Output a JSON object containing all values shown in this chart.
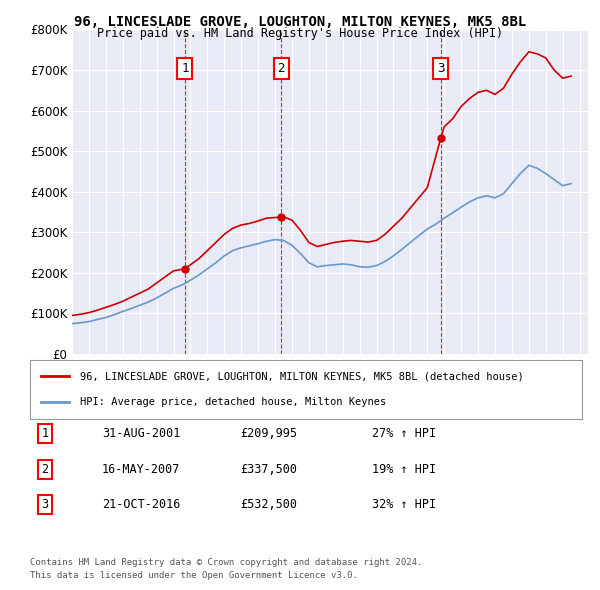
{
  "title": "96, LINCESLADE GROVE, LOUGHTON, MILTON KEYNES, MK5 8BL",
  "subtitle": "Price paid vs. HM Land Registry's House Price Index (HPI)",
  "ylabel": "",
  "background_color": "#ffffff",
  "plot_bg_color": "#e8eaf6",
  "grid_color": "#ffffff",
  "ylim": [
    0,
    800000
  ],
  "yticks": [
    0,
    100000,
    200000,
    300000,
    400000,
    500000,
    600000,
    700000,
    800000
  ],
  "ytick_labels": [
    "£0",
    "£100K",
    "£200K",
    "£300K",
    "£400K",
    "£500K",
    "£600K",
    "£700K",
    "£800K"
  ],
  "xlim_start": 1995.0,
  "xlim_end": 2025.5,
  "sale_dates": [
    2001.667,
    2007.375,
    2016.8
  ],
  "sale_prices": [
    209995,
    337500,
    532500
  ],
  "sale_labels": [
    "1",
    "2",
    "3"
  ],
  "sale_date_strings": [
    "31-AUG-2001",
    "16-MAY-2007",
    "21-OCT-2016"
  ],
  "sale_price_strings": [
    "£209,995",
    "£337,500",
    "£532,500"
  ],
  "sale_hpi_strings": [
    "27% ↑ HPI",
    "19% ↑ HPI",
    "32% ↑ HPI"
  ],
  "red_line_color": "#cc0000",
  "blue_line_color": "#6699cc",
  "legend_label_red": "96, LINCESLADE GROVE, LOUGHTON, MILTON KEYNES, MK5 8BL (detached house)",
  "legend_label_blue": "HPI: Average price, detached house, Milton Keynes",
  "footer_line1": "Contains HM Land Registry data © Crown copyright and database right 2024.",
  "footer_line2": "This data is licensed under the Open Government Licence v3.0.",
  "red_x": [
    1995.0,
    1995.5,
    1996.0,
    1996.5,
    1997.0,
    1997.5,
    1998.0,
    1998.5,
    1999.0,
    1999.5,
    2000.0,
    2000.5,
    2001.0,
    2001.667,
    2002.0,
    2002.5,
    2003.0,
    2003.5,
    2004.0,
    2004.5,
    2005.0,
    2005.5,
    2006.0,
    2006.5,
    2007.375,
    2007.5,
    2008.0,
    2008.5,
    2009.0,
    2009.5,
    2010.0,
    2010.5,
    2011.0,
    2011.5,
    2012.0,
    2012.5,
    2013.0,
    2013.5,
    2014.0,
    2014.5,
    2015.0,
    2015.5,
    2016.0,
    2016.8,
    2017.0,
    2017.5,
    2018.0,
    2018.5,
    2019.0,
    2019.5,
    2020.0,
    2020.5,
    2021.0,
    2021.5,
    2022.0,
    2022.5,
    2023.0,
    2023.5,
    2024.0,
    2024.5
  ],
  "red_y": [
    95000,
    98000,
    102000,
    108000,
    115000,
    122000,
    130000,
    140000,
    150000,
    160000,
    175000,
    190000,
    205000,
    209995,
    220000,
    235000,
    255000,
    275000,
    295000,
    310000,
    318000,
    322000,
    328000,
    335000,
    337500,
    338000,
    330000,
    305000,
    275000,
    265000,
    270000,
    275000,
    278000,
    280000,
    278000,
    276000,
    280000,
    295000,
    315000,
    335000,
    360000,
    385000,
    410000,
    532500,
    560000,
    580000,
    610000,
    630000,
    645000,
    650000,
    640000,
    655000,
    690000,
    720000,
    745000,
    740000,
    730000,
    700000,
    680000,
    685000
  ],
  "blue_x": [
    1995.0,
    1995.5,
    1996.0,
    1996.5,
    1997.0,
    1997.5,
    1998.0,
    1998.5,
    1999.0,
    1999.5,
    2000.0,
    2000.5,
    2001.0,
    2001.5,
    2002.0,
    2002.5,
    2003.0,
    2003.5,
    2004.0,
    2004.5,
    2005.0,
    2005.5,
    2006.0,
    2006.5,
    2007.0,
    2007.5,
    2008.0,
    2008.5,
    2009.0,
    2009.5,
    2010.0,
    2010.5,
    2011.0,
    2011.5,
    2012.0,
    2012.5,
    2013.0,
    2013.5,
    2014.0,
    2014.5,
    2015.0,
    2015.5,
    2016.0,
    2016.5,
    2017.0,
    2017.5,
    2018.0,
    2018.5,
    2019.0,
    2019.5,
    2020.0,
    2020.5,
    2021.0,
    2021.5,
    2022.0,
    2022.5,
    2023.0,
    2023.5,
    2024.0,
    2024.5
  ],
  "blue_y": [
    75000,
    77000,
    80000,
    85000,
    90000,
    97000,
    105000,
    112000,
    120000,
    128000,
    138000,
    150000,
    162000,
    170000,
    182000,
    195000,
    210000,
    225000,
    242000,
    255000,
    262000,
    267000,
    272000,
    278000,
    282000,
    280000,
    268000,
    248000,
    225000,
    215000,
    218000,
    220000,
    222000,
    220000,
    215000,
    214000,
    218000,
    228000,
    242000,
    258000,
    275000,
    292000,
    308000,
    320000,
    335000,
    348000,
    362000,
    375000,
    385000,
    390000,
    385000,
    395000,
    420000,
    445000,
    465000,
    458000,
    445000,
    430000,
    415000,
    420000
  ]
}
